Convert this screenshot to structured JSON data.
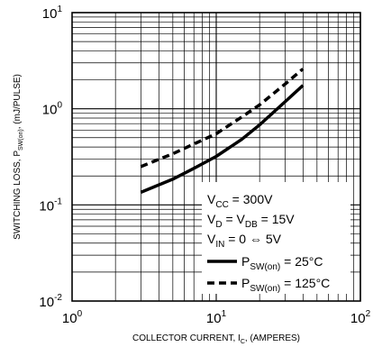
{
  "chart_data": {
    "type": "line",
    "x_scale": "log",
    "y_scale": "log",
    "xlim": [
      1,
      100
    ],
    "ylim": [
      0.01,
      10
    ],
    "grid": true,
    "x_ticks": [
      {
        "base": "10",
        "exp": "0",
        "value": 1
      },
      {
        "base": "10",
        "exp": "1",
        "value": 10
      },
      {
        "base": "10",
        "exp": "2",
        "value": 100
      }
    ],
    "y_ticks": [
      {
        "base": "10",
        "exp": "-2",
        "value": 0.01
      },
      {
        "base": "10",
        "exp": "-1",
        "value": 0.1
      },
      {
        "base": "10",
        "exp": "0",
        "value": 1
      },
      {
        "base": "10",
        "exp": "1",
        "value": 10
      }
    ],
    "xlabel": {
      "main": "COLLECTOR CURRENT, I",
      "sub": "C",
      "tail": ", (AMPERES)"
    },
    "ylabel": {
      "main": "SWITCHING LOSS, P",
      "sub": "SW(on)",
      "tail": ",  (mJ/PULSE)"
    },
    "conditions": [
      {
        "a": "V",
        "a_sub": "CC",
        "b": " = 300V",
        "b_sub": "",
        "c": ""
      },
      {
        "a": "V",
        "a_sub": "D",
        "b": " = V",
        "b_sub": "DB",
        "c": " = 15V"
      },
      {
        "a": "V",
        "a_sub": "IN",
        "b": " = 0 ⇔ 5V",
        "b_sub": "",
        "c": ""
      }
    ],
    "series": [
      {
        "legend_main": "P",
        "legend_sub": "SW(on)",
        "legend_tail": " = 25°C",
        "style": "solid",
        "color": "#000000",
        "x": [
          3,
          5,
          7,
          10,
          15,
          20,
          30,
          40
        ],
        "y": [
          0.135,
          0.185,
          0.24,
          0.32,
          0.48,
          0.68,
          1.18,
          1.75
        ]
      },
      {
        "legend_main": "P",
        "legend_sub": "SW(on)",
        "legend_tail": " = 125°C",
        "style": "dashed",
        "color": "#000000",
        "x": [
          3,
          5,
          7,
          10,
          15,
          20,
          30,
          40
        ],
        "y": [
          0.25,
          0.34,
          0.43,
          0.55,
          0.82,
          1.1,
          1.8,
          2.6
        ]
      }
    ]
  }
}
